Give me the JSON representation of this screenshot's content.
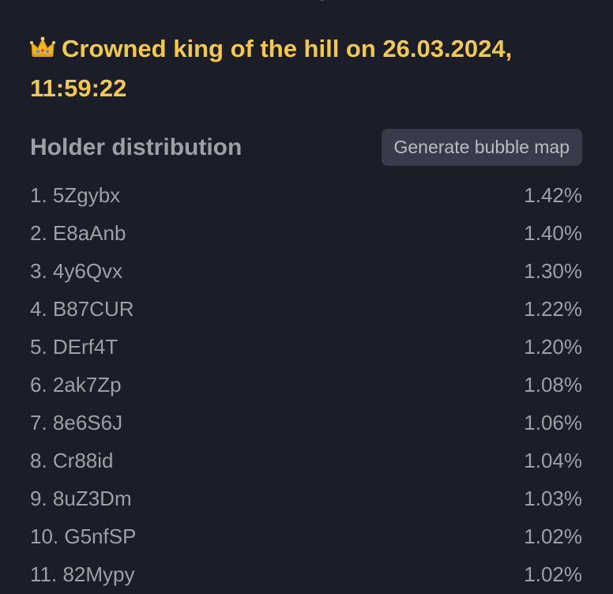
{
  "banner": {
    "icon": "crown-icon",
    "text": "Crowned king of the hill on 26.03.2024, 11:59:22"
  },
  "holders": {
    "title": "Holder distribution",
    "button_label": "Generate bubble map",
    "items": [
      {
        "label": "1. 5Zgybx",
        "percent": "1.42%"
      },
      {
        "label": "2. E8aAnb",
        "percent": "1.40%"
      },
      {
        "label": "3. 4y6Qvx",
        "percent": "1.30%"
      },
      {
        "label": "4. B87CUR",
        "percent": "1.22%"
      },
      {
        "label": "5. DErf4T",
        "percent": "1.20%"
      },
      {
        "label": "6. 2ak7Zp",
        "percent": "1.08%"
      },
      {
        "label": "7. 8e6S6J",
        "percent": "1.06%"
      },
      {
        "label": "8. Cr88id",
        "percent": "1.04%"
      },
      {
        "label": "9. 8uZ3Dm",
        "percent": "1.03%"
      },
      {
        "label": "10. G5nfSP",
        "percent": "1.02%"
      },
      {
        "label": "11. 82Mypy",
        "percent": "1.02%"
      }
    ]
  },
  "colors": {
    "background": "#1b1d28",
    "accent": "#f3c94a",
    "text": "#9ca0a8",
    "button_bg": "#383c4a"
  }
}
